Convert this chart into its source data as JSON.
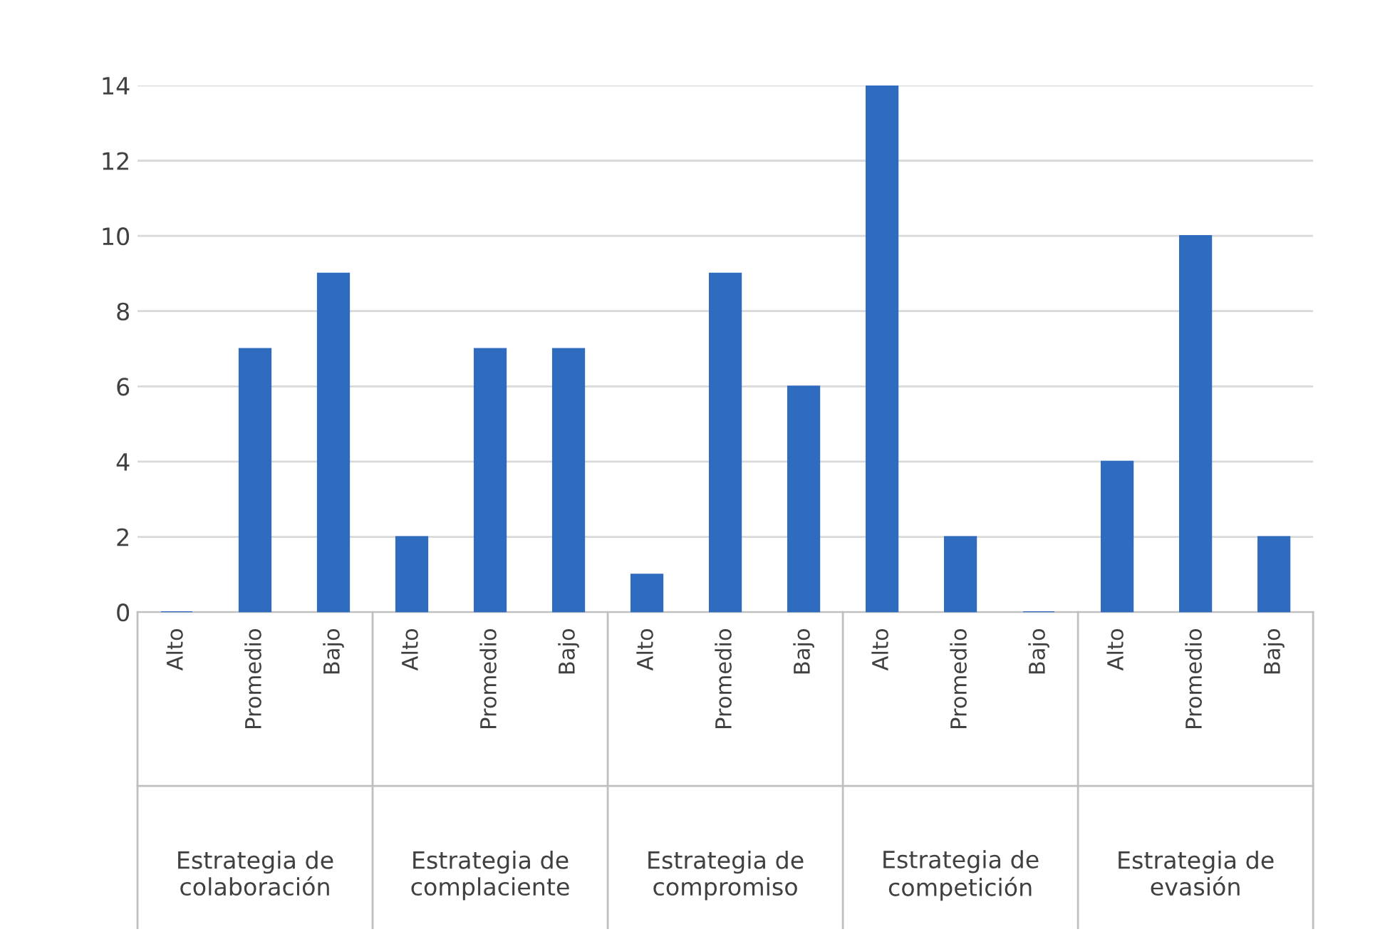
{
  "chart_data": {
    "type": "bar",
    "categories": [
      "Alto",
      "Promedio",
      "Bajo",
      "Alto",
      "Promedio",
      "Bajo",
      "Alto",
      "Promedio",
      "Bajo",
      "Alto",
      "Promedio",
      "Bajo",
      "Alto",
      "Promedio",
      "Bajo"
    ],
    "values": [
      0,
      7,
      9,
      2,
      7,
      7,
      1,
      9,
      6,
      14,
      2,
      0,
      4,
      10,
      2
    ],
    "color": "#2f6bbf",
    "annotations": [
      "Estrategia de\ncolaboración",
      "Estrategia de\ncomplaciente",
      "Estrategia de\ncompromiso",
      "Estrategia de\ncompetición",
      "Estrategia de\nevasión"
    ],
    "ylim": [
      0,
      14
    ],
    "yticks": [
      0,
      2,
      4,
      6,
      8,
      10,
      12,
      14
    ],
    "grid": "y"
  }
}
